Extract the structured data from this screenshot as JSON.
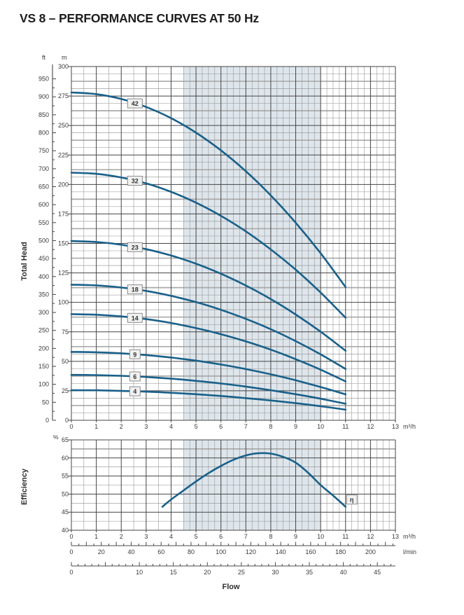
{
  "title": "VS 8 – PERFORMANCE CURVES AT 50 Hz",
  "labels": {
    "total_head": "Total Head",
    "efficiency": "Efficiency",
    "flow": "Flow",
    "ft_unit": "ft",
    "m_unit": "m",
    "percent_unit": "%",
    "m3h_unit": "m³/h",
    "lmin_unit": "l/min"
  },
  "colors": {
    "curve": "#19608a",
    "band": "#dee6ec",
    "grid_minor": "#8f8f8f",
    "grid_medium": "#aaaaaa",
    "grid_major": "#454545",
    "tick_text": "#3a3a3a",
    "label_box_fill": "#f1f1f1",
    "label_box_border": "#8c8c8c",
    "label_box_text": "#333333"
  },
  "chart_data": {
    "type": "line",
    "title": "VS 8 – PERFORMANCE CURVES AT 50 Hz",
    "xlabel": "Flow",
    "band_x": [
      4.5,
      10
    ],
    "head_chart": {
      "ylabel": "Total Head",
      "x_axis": {
        "unit": "m³/h",
        "min": 0,
        "max": 13,
        "label_step": 1
      },
      "left_axis": {
        "unit": "ft",
        "min": 0,
        "max": 950,
        "label_step": 50,
        "tick_step": 25
      },
      "right_axis": {
        "unit": "m",
        "min": 0,
        "max": 300,
        "label_step": 25,
        "medium_step": 12.5,
        "minor_step": 6.25
      },
      "x_values": [
        0,
        1,
        2,
        3,
        4,
        5,
        6,
        7,
        8,
        9,
        10,
        11
      ],
      "series": [
        {
          "label": "42",
          "heads_m": [
            278,
            276.6,
            272.5,
            265.7,
            256.2,
            243.9,
            228.9,
            211.2,
            190.7,
            167.5,
            141.6,
            113
          ]
        },
        {
          "label": "32",
          "heads_m": [
            210,
            209,
            205.9,
            200.9,
            193.7,
            184.6,
            173.4,
            160.2,
            144.9,
            127.7,
            108.3,
            87
          ]
        },
        {
          "label": "23",
          "heads_m": [
            152,
            151.2,
            148.9,
            145.1,
            139.7,
            132.8,
            124.3,
            114.3,
            102.8,
            89.7,
            75.1,
            59
          ]
        },
        {
          "label": "18",
          "heads_m": [
            115,
            114.4,
            112.6,
            109.7,
            105.5,
            100.2,
            93.7,
            86,
            77.2,
            67.1,
            55.9,
            43.5
          ]
        },
        {
          "label": "14",
          "heads_m": [
            90,
            89.5,
            88.1,
            85.8,
            82.5,
            78.2,
            73,
            66.9,
            59.9,
            51.8,
            42.9,
            33
          ]
        },
        {
          "label": "9",
          "heads_m": [
            58,
            57.7,
            56.8,
            55.3,
            53.2,
            50.6,
            47.3,
            43.4,
            39,
            33.9,
            28.2,
            22
          ]
        },
        {
          "label": "6",
          "heads_m": [
            38.5,
            38.3,
            37.7,
            36.7,
            35.3,
            33.4,
            31.2,
            28.6,
            25.5,
            22.1,
            18.3,
            14
          ]
        },
        {
          "label": "4",
          "heads_m": [
            25.5,
            25.4,
            24.9,
            24.3,
            23.3,
            22.1,
            20.6,
            18.8,
            16.8,
            14.5,
            11.9,
            9
          ]
        }
      ],
      "series_label_x": 2.55
    },
    "efficiency_chart": {
      "ylabel": "Efficiency",
      "y_unit": "%",
      "y_min": 40,
      "y_max": 65,
      "label_step": 5,
      "minor_step": 2.5,
      "medium_line": 62.5,
      "x_axis": {
        "unit": "m³/h",
        "min": 0,
        "max": 13,
        "label_step": 1
      },
      "curve_label": "η",
      "curve_label_pos": [
        11.25,
        48.5
      ],
      "points": [
        [
          3.65,
          46.5
        ],
        [
          4,
          48.5
        ],
        [
          4.5,
          51
        ],
        [
          5,
          53.5
        ],
        [
          5.5,
          55.8
        ],
        [
          6,
          57.8
        ],
        [
          6.5,
          59.5
        ],
        [
          7,
          60.7
        ],
        [
          7.5,
          61.3
        ],
        [
          8,
          61.2
        ],
        [
          8.5,
          60.3
        ],
        [
          9,
          58.7
        ],
        [
          9.5,
          55.9
        ],
        [
          10,
          52.5
        ],
        [
          10.5,
          49.6
        ],
        [
          11,
          46.5
        ]
      ]
    },
    "flow_scales": [
      {
        "unit": "l/min",
        "labels": [
          0,
          20,
          40,
          60,
          80,
          100,
          120,
          140,
          160,
          180,
          200
        ],
        "m3h_per_unit": 0.06,
        "minor_step": 5,
        "medium_step": 10
      },
      {
        "unit": "",
        "labels": [
          0,
          10,
          15,
          20,
          25,
          30,
          35,
          40,
          45
        ],
        "m3h_per_unit": 0.272765,
        "minor_step": 1,
        "medium_step": 5
      }
    ]
  }
}
